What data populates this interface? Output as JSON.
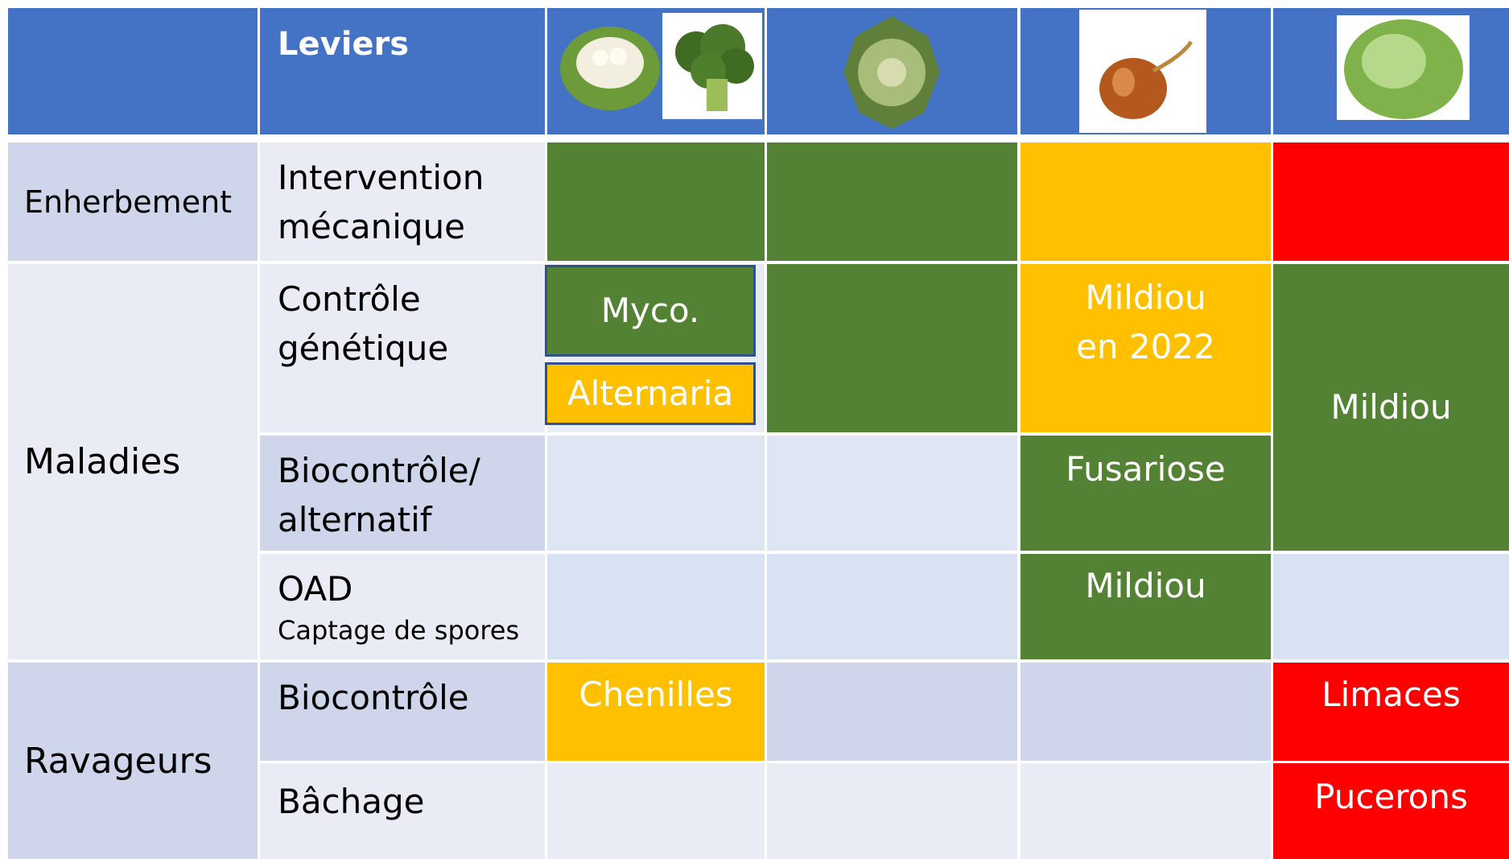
{
  "header": {
    "title": "Leviers"
  },
  "groups": [
    {
      "label": "Enherbement"
    },
    {
      "label": "Maladies"
    },
    {
      "label": "Ravageurs"
    }
  ],
  "levers": [
    {
      "label": "Intervention mécanique"
    },
    {
      "label": "Contrôle génétique"
    },
    {
      "label": "Biocontrôle/ alternatif"
    },
    {
      "label": "OAD",
      "note": "Captage de spores"
    },
    {
      "label": "Biocontrôle"
    },
    {
      "label": "Bâchage"
    }
  ],
  "cells": {
    "myco": "Myco.",
    "alternaria": "Alternaria",
    "oignon_genetique": "Mildiou en 2022",
    "salade_maladies": "Mildiou",
    "fusariose": "Fusariose",
    "oignon_oad": "Mildiou",
    "chenilles": "Chenilles",
    "limaces": "Limaces",
    "pucerons": "Pucerons"
  }
}
